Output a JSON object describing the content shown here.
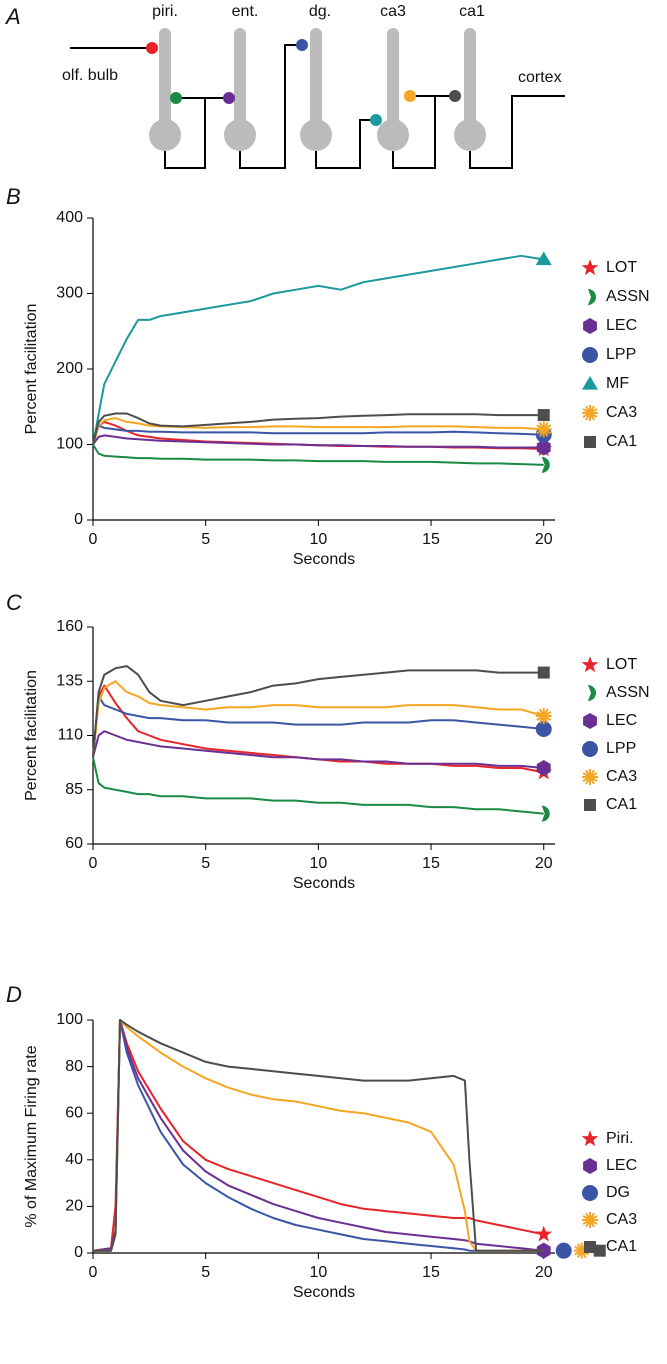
{
  "diagram": {
    "panel": "A",
    "labels": [
      "piri.",
      "ent.",
      "dg.",
      "ca3",
      "ca1"
    ],
    "input": "olf. bulb",
    "output": "cortex"
  },
  "chart_data": [
    {
      "panel": "B",
      "type": "line",
      "ylabel": "Percent facilitation",
      "xlabel": "Seconds",
      "xlim": [
        0,
        20.5
      ],
      "xticks": [
        0,
        5,
        10,
        15,
        20
      ],
      "ylim": [
        0,
        400
      ],
      "yticks": [
        0,
        100,
        200,
        300,
        400
      ],
      "x": [
        0,
        0.25,
        0.5,
        1,
        1.5,
        2,
        2.5,
        3,
        4,
        5,
        6,
        7,
        8,
        9,
        10,
        11,
        12,
        13,
        14,
        15,
        16,
        17,
        18,
        19,
        20
      ],
      "series": [
        {
          "name": "LOT",
          "color": "#e8232a",
          "marker": "star",
          "values": [
            100,
            125,
            130,
            125,
            118,
            112,
            110,
            108,
            106,
            104,
            103,
            102,
            101,
            100,
            99,
            98,
            98,
            97,
            97,
            97,
            96,
            96,
            95,
            95,
            94
          ]
        },
        {
          "name": "ASSN",
          "color": "#1a8a45",
          "marker": "half",
          "values": [
            100,
            88,
            85,
            84,
            83,
            82,
            82,
            81,
            81,
            80,
            80,
            80,
            79,
            79,
            78,
            78,
            78,
            77,
            77,
            77,
            76,
            75,
            75,
            74,
            73
          ]
        },
        {
          "name": "LEC",
          "color": "#6a2f93",
          "marker": "hexagon",
          "values": [
            100,
            110,
            112,
            110,
            108,
            107,
            106,
            105,
            104,
            103,
            102,
            101,
            100,
            100,
            99,
            99,
            98,
            98,
            97,
            97,
            97,
            97,
            96,
            96,
            96
          ]
        },
        {
          "name": "LPP",
          "color": "#3a55a5",
          "marker": "circle",
          "values": [
            100,
            125,
            122,
            120,
            118,
            118,
            117,
            117,
            116,
            116,
            116,
            116,
            115,
            115,
            115,
            115,
            115,
            116,
            116,
            116,
            117,
            116,
            115,
            114,
            113
          ]
        },
        {
          "name": "MF",
          "color": "#1a9a9a",
          "marker": "triangle",
          "values": [
            100,
            140,
            180,
            210,
            240,
            265,
            265,
            270,
            275,
            280,
            285,
            290,
            300,
            305,
            310,
            305,
            315,
            320,
            325,
            330,
            335,
            340,
            345,
            350,
            345
          ]
        },
        {
          "name": "CA3",
          "color": "#f5a623",
          "marker": "asterisk",
          "values": [
            100,
            125,
            132,
            135,
            130,
            128,
            125,
            124,
            123,
            122,
            123,
            123,
            124,
            124,
            123,
            123,
            123,
            123,
            124,
            124,
            124,
            123,
            122,
            122,
            120
          ]
        },
        {
          "name": "CA1",
          "color": "#4d4d4d",
          "marker": "square",
          "values": [
            100,
            130,
            138,
            141,
            141,
            135,
            128,
            125,
            124,
            126,
            128,
            130,
            133,
            134,
            135,
            137,
            138,
            139,
            140,
            140,
            140,
            140,
            139,
            139,
            139
          ]
        }
      ]
    },
    {
      "panel": "C",
      "type": "line",
      "ylabel": "Percent facilitation",
      "xlabel": "Seconds",
      "xlim": [
        0,
        20.5
      ],
      "xticks": [
        0,
        5,
        10,
        15,
        20
      ],
      "ylim": [
        60,
        160
      ],
      "yticks": [
        60,
        85,
        110,
        135,
        160
      ],
      "x": [
        0,
        0.25,
        0.5,
        1,
        1.5,
        2,
        2.5,
        3,
        4,
        5,
        6,
        7,
        8,
        9,
        10,
        11,
        12,
        13,
        14,
        15,
        16,
        17,
        18,
        19,
        20
      ],
      "series": [
        {
          "name": "LOT",
          "color": "#e8232a",
          "marker": "star",
          "values": [
            100,
            128,
            133,
            125,
            118,
            112,
            110,
            108,
            106,
            104,
            103,
            102,
            101,
            100,
            99,
            98,
            98,
            97,
            97,
            97,
            96,
            96,
            95,
            95,
            93
          ]
        },
        {
          "name": "ASSN",
          "color": "#1a8a45",
          "marker": "half",
          "values": [
            100,
            88,
            86,
            85,
            84,
            83,
            83,
            82,
            82,
            81,
            81,
            81,
            80,
            80,
            79,
            79,
            78,
            78,
            78,
            77,
            77,
            76,
            76,
            75,
            74
          ]
        },
        {
          "name": "LEC",
          "color": "#6a2f93",
          "marker": "hexagon",
          "values": [
            100,
            110,
            112,
            110,
            108,
            107,
            106,
            105,
            104,
            103,
            102,
            101,
            100,
            100,
            99,
            99,
            98,
            98,
            97,
            97,
            97,
            97,
            96,
            96,
            95
          ]
        },
        {
          "name": "LPP",
          "color": "#3a55a5",
          "marker": "circle",
          "values": [
            100,
            128,
            124,
            122,
            120,
            119,
            118,
            118,
            117,
            117,
            116,
            116,
            116,
            115,
            115,
            115,
            116,
            116,
            116,
            117,
            117,
            116,
            115,
            114,
            113
          ]
        },
        {
          "name": "CA3",
          "color": "#f5a623",
          "marker": "asterisk",
          "values": [
            100,
            125,
            132,
            135,
            130,
            128,
            125,
            124,
            123,
            122,
            123,
            123,
            124,
            124,
            123,
            123,
            123,
            123,
            124,
            124,
            124,
            123,
            122,
            122,
            119
          ]
        },
        {
          "name": "CA1",
          "color": "#4d4d4d",
          "marker": "square",
          "values": [
            100,
            130,
            138,
            141,
            142,
            138,
            130,
            126,
            124,
            126,
            128,
            130,
            133,
            134,
            136,
            137,
            138,
            139,
            140,
            140,
            140,
            140,
            139,
            139,
            139
          ]
        }
      ]
    },
    {
      "panel": "D",
      "type": "line",
      "ylabel": "% of Maximum Firing rate",
      "xlabel": "Seconds",
      "xlim": [
        0,
        20.5
      ],
      "xticks": [
        0,
        5,
        10,
        15,
        20
      ],
      "ylim": [
        0,
        100
      ],
      "yticks": [
        0,
        20,
        40,
        60,
        80,
        100
      ],
      "x": [
        0,
        0.8,
        1.0,
        1.2,
        1.5,
        2,
        3,
        4,
        5,
        6,
        7,
        8,
        9,
        10,
        11,
        12,
        13,
        14,
        15,
        16,
        16.5,
        16.7,
        17,
        18,
        19,
        20
      ],
      "series": [
        {
          "name": "Piri.",
          "color": "#e8232a",
          "marker": "star",
          "values": [
            1,
            2,
            20,
            100,
            90,
            78,
            62,
            48,
            40,
            36,
            33,
            30,
            27,
            24,
            21,
            19,
            18,
            17,
            16,
            15,
            15,
            15,
            14,
            12,
            10,
            8
          ]
        },
        {
          "name": "LEC",
          "color": "#6a2f93",
          "marker": "hexagon",
          "values": [
            1,
            2,
            10,
            100,
            88,
            75,
            58,
            44,
            35,
            29,
            25,
            21,
            18,
            15,
            13,
            11,
            9,
            8,
            7,
            6,
            5.5,
            5,
            4,
            3,
            2,
            1
          ]
        },
        {
          "name": "DG",
          "color": "#3a55a5",
          "marker": "circle",
          "values": [
            1,
            1,
            8,
            100,
            86,
            72,
            52,
            38,
            30,
            24,
            19,
            15,
            12,
            10,
            8,
            6,
            5,
            4,
            3,
            2,
            1.5,
            1,
            1,
            1,
            1,
            1
          ]
        },
        {
          "name": "CA3",
          "color": "#f5a623",
          "marker": "asterisk",
          "values": [
            1,
            1,
            8,
            100,
            97,
            93,
            86,
            80,
            75,
            71,
            68,
            66,
            65,
            63,
            61,
            60,
            58,
            56,
            52,
            38,
            18,
            5,
            1,
            1,
            1,
            1
          ]
        },
        {
          "name": "CA1",
          "color": "#4d4d4d",
          "marker": "square",
          "values": [
            1,
            1,
            8,
            100,
            98,
            95,
            90,
            86,
            82,
            80,
            79,
            78,
            77,
            76,
            75,
            74,
            74,
            74,
            75,
            76,
            74,
            40,
            1,
            1,
            1,
            1
          ]
        }
      ]
    }
  ]
}
